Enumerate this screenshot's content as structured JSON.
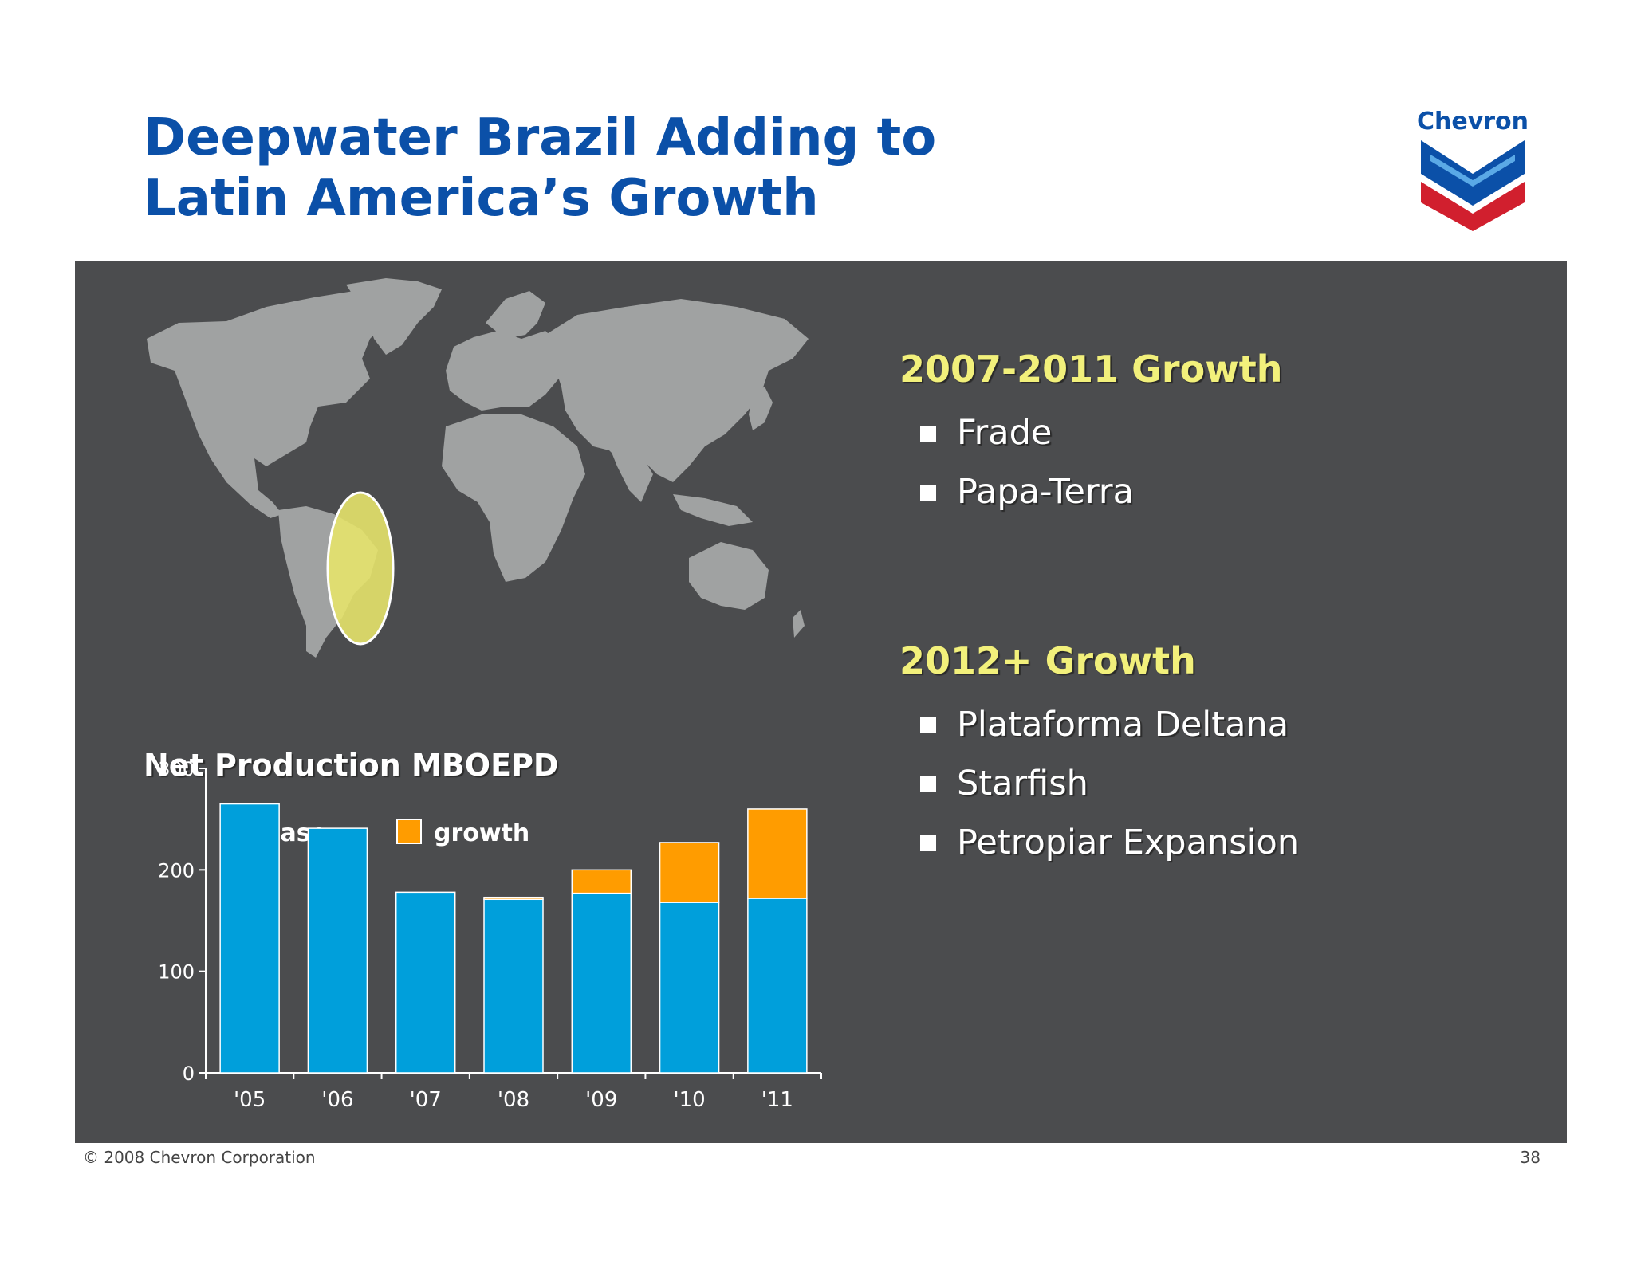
{
  "title_line1": "Deepwater Brazil Adding to",
  "title_line2": "Latin America’s Growth",
  "logo": {
    "text": "Chevron",
    "blue": "#0b50a8",
    "red": "#d11f2e"
  },
  "colors": {
    "panel_bg": "#4b4c4e",
    "title": "#0b50a8",
    "heading": "#f2f07b",
    "base": "#009fdb",
    "growth": "#ff9c00",
    "map": "#a0a2a2",
    "highlight": "#e6e36b"
  },
  "right": {
    "section1": {
      "heading": "2007-2011 Growth",
      "items": [
        "Frade",
        "Papa-Terra"
      ]
    },
    "section2": {
      "heading": "2012+ Growth",
      "items": [
        "Plataforma Deltana",
        "Starfish",
        "Petropiar Expansion"
      ]
    }
  },
  "chart_data": {
    "type": "bar",
    "stacked": true,
    "title": "Net Production MBOEPD",
    "categories": [
      "'05",
      "'06",
      "'07",
      "'08",
      "'09",
      "'10",
      "'11"
    ],
    "series": [
      {
        "name": "base",
        "color": "#009fdb",
        "values": [
          265,
          241,
          178,
          171,
          177,
          168,
          172
        ]
      },
      {
        "name": "growth",
        "color": "#ff9c00",
        "values": [
          0,
          0,
          0,
          2,
          23,
          59,
          88
        ]
      }
    ],
    "yticks": [
      0,
      100,
      200,
      300
    ],
    "ylim": [
      0,
      300
    ],
    "legend": "top-left"
  },
  "footer": {
    "copyright": "© 2008 Chevron Corporation",
    "page": "38"
  }
}
